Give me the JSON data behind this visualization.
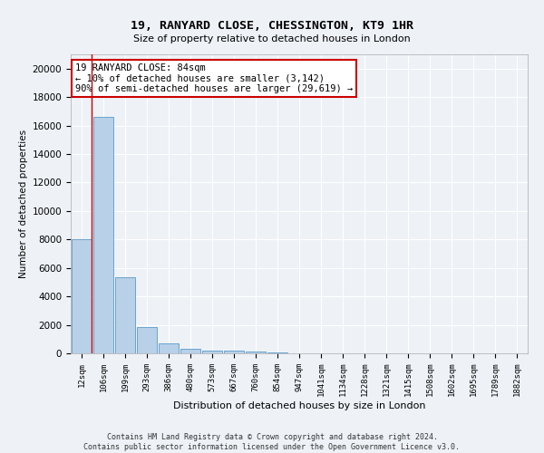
{
  "title": "19, RANYARD CLOSE, CHESSINGTON, KT9 1HR",
  "subtitle": "Size of property relative to detached houses in London",
  "xlabel": "Distribution of detached houses by size in London",
  "ylabel": "Number of detached properties",
  "bar_color": "#b8d0e8",
  "bar_edge_color": "#5a9ac8",
  "background_color": "#eef2f7",
  "grid_color": "#ffffff",
  "annotation_text": "19 RANYARD CLOSE: 84sqm\n← 10% of detached houses are smaller (3,142)\n90% of semi-detached houses are larger (29,619) →",
  "annotation_box_color": "#ffffff",
  "annotation_box_edge": "#cc0000",
  "vline_color": "#cc0000",
  "footer_line1": "Contains HM Land Registry data © Crown copyright and database right 2024.",
  "footer_line2": "Contains public sector information licensed under the Open Government Licence v3.0.",
  "categories": [
    "12sqm",
    "106sqm",
    "199sqm",
    "293sqm",
    "386sqm",
    "480sqm",
    "573sqm",
    "667sqm",
    "760sqm",
    "854sqm",
    "947sqm",
    "1041sqm",
    "1134sqm",
    "1228sqm",
    "1321sqm",
    "1415sqm",
    "1508sqm",
    "1602sqm",
    "1695sqm",
    "1789sqm",
    "1882sqm"
  ],
  "values": [
    8050,
    16600,
    5350,
    1850,
    700,
    320,
    200,
    170,
    130,
    80,
    30,
    15,
    8,
    5,
    3,
    2,
    2,
    1,
    1,
    1,
    0
  ],
  "ylim": [
    0,
    21000
  ],
  "yticks": [
    0,
    2000,
    4000,
    6000,
    8000,
    10000,
    12000,
    14000,
    16000,
    18000,
    20000
  ]
}
